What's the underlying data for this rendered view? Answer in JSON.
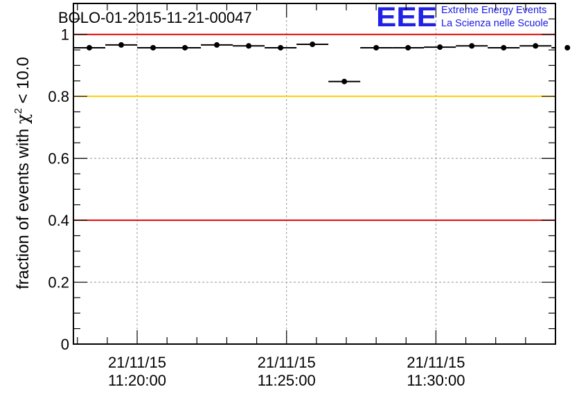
{
  "chart_data": {
    "type": "scatter",
    "title": "BOLO-01-2015-11-21-00047",
    "ylabel_prefix": "fraction of events with",
    "ylabel_chi": "χ",
    "ylabel_sup": "2",
    "ylabel_suffix": "< 10.0",
    "ylim": [
      0,
      1.1
    ],
    "xlim": [
      "21/11/15 11:17:52",
      "21/11/15 11:34:00"
    ],
    "yticks": [
      0,
      0.2,
      0.4,
      0.6,
      0.8,
      1
    ],
    "yticklabels": [
      "0",
      "0.2",
      "0.4",
      "0.6",
      "0.8",
      "1"
    ],
    "xticks": [
      {
        "time": "21/11/15 11:20:00",
        "date": "21/11/15",
        "clock": "11:20:00"
      },
      {
        "time": "21/11/15 11:25:00",
        "date": "21/11/15",
        "clock": "11:25:00"
      },
      {
        "time": "21/11/15 11:30:00",
        "date": "21/11/15",
        "clock": "11:30:00"
      }
    ],
    "grid": true,
    "reference_lines": [
      {
        "y": 1.0,
        "color": "#e60000"
      },
      {
        "y": 0.8,
        "color": "#ffcc00"
      },
      {
        "y": 0.4,
        "color": "#e60000"
      }
    ],
    "marker_color": "#000000",
    "points": [
      {
        "start": "21/11/15 11:17:52",
        "end": "21/11/15 11:18:56",
        "y": 0.957
      },
      {
        "start": "21/11/15 11:18:56",
        "end": "21/11/15 11:20:00",
        "y": 0.966
      },
      {
        "start": "21/11/15 11:20:00",
        "end": "21/11/15 11:21:04",
        "y": 0.957
      },
      {
        "start": "21/11/15 11:21:04",
        "end": "21/11/15 11:22:08",
        "y": 0.957
      },
      {
        "start": "21/11/15 11:22:08",
        "end": "21/11/15 11:23:12",
        "y": 0.966
      },
      {
        "start": "21/11/15 11:23:12",
        "end": "21/11/15 11:24:16",
        "y": 0.963
      },
      {
        "start": "21/11/15 11:24:16",
        "end": "21/11/15 11:25:20",
        "y": 0.957
      },
      {
        "start": "21/11/15 11:25:20",
        "end": "21/11/15 11:26:24",
        "y": 0.968
      },
      {
        "start": "21/11/15 11:26:24",
        "end": "21/11/15 11:27:28",
        "y": 0.848
      },
      {
        "start": "21/11/15 11:27:28",
        "end": "21/11/15 11:28:32",
        "y": 0.957
      },
      {
        "start": "21/11/15 11:28:32",
        "end": "21/11/15 11:29:36",
        "y": 0.957
      },
      {
        "start": "21/11/15 11:29:36",
        "end": "21/11/15 11:30:40",
        "y": 0.959
      },
      {
        "start": "21/11/15 11:30:40",
        "end": "21/11/15 11:31:44",
        "y": 0.963
      },
      {
        "start": "21/11/15 11:31:44",
        "end": "21/11/15 11:32:48",
        "y": 0.957
      },
      {
        "start": "21/11/15 11:32:48",
        "end": "21/11/15 11:33:52",
        "y": 0.963
      },
      {
        "start": "21/11/15 11:33:52",
        "end": "21/11/15 11:34:56",
        "y": 0.957
      }
    ]
  },
  "logo": {
    "mark": "EEE",
    "line1": "Extreme Energy Events",
    "line2": "La Scienza nelle Scuole",
    "color": "#1a1ae6"
  }
}
